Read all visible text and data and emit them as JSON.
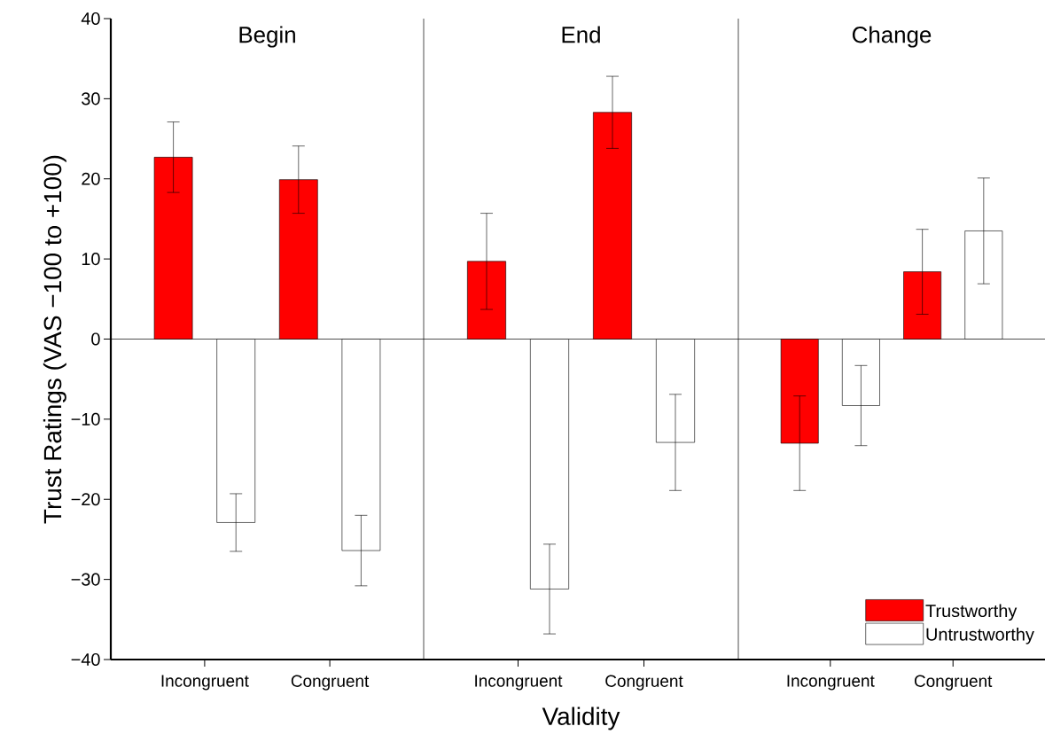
{
  "chart_data": [
    {
      "type": "bar",
      "title": "Begin",
      "ylabel": "Trust Ratings (VAS −100 to +100)",
      "categories": [
        "Incongruent",
        "Congruent"
      ],
      "ylim": [
        -40,
        40
      ],
      "yticks": [
        {
          "value": -40,
          "label": "−40"
        },
        {
          "value": -30,
          "label": "−30"
        },
        {
          "value": -20,
          "label": "−20"
        },
        {
          "value": -10,
          "label": "−10"
        },
        0,
        10,
        20,
        30,
        40
      ],
      "series": [
        {
          "color": "#ff0000",
          "values": [
            22.7,
            19.9
          ],
          "errors": [
            4.4,
            4.2
          ]
        },
        {
          "color": "#ffffff",
          "values": [
            -22.9,
            -26.4
          ],
          "errors": [
            3.6,
            4.4
          ]
        }
      ],
      "ref_lines": [
        {
          "axis": "y",
          "value": 0
        }
      ]
    },
    {
      "type": "bar",
      "title": "End",
      "xlabel": "Validity",
      "categories": [
        "Incongruent",
        "Congruent"
      ],
      "ylim": [
        -40,
        40
      ],
      "tick_labels": "x",
      "series": [
        {
          "color": "#ff0000",
          "values": [
            9.7,
            28.3
          ],
          "errors": [
            6.0,
            4.5
          ]
        },
        {
          "color": "#ffffff",
          "values": [
            -31.2,
            -12.9
          ],
          "errors": [
            5.6,
            6.0
          ]
        }
      ],
      "ref_lines": [
        {
          "axis": "y",
          "value": 0
        }
      ]
    },
    {
      "type": "bar",
      "title": "Change",
      "categories": [
        "Incongruent",
        "Congruent"
      ],
      "ylim": [
        -40,
        40
      ],
      "tick_labels": "x",
      "legend": "bottom right",
      "series": [
        {
          "name": "Trustworthy",
          "color": "#ff0000",
          "values": [
            -13.0,
            8.4
          ],
          "errors": [
            5.9,
            5.3
          ]
        },
        {
          "name": "Untrustworthy",
          "color": "#ffffff",
          "values": [
            -8.3,
            13.5
          ],
          "errors": [
            5.0,
            6.6
          ]
        }
      ],
      "ref_lines": [
        {
          "axis": "y",
          "value": 0
        }
      ]
    }
  ]
}
